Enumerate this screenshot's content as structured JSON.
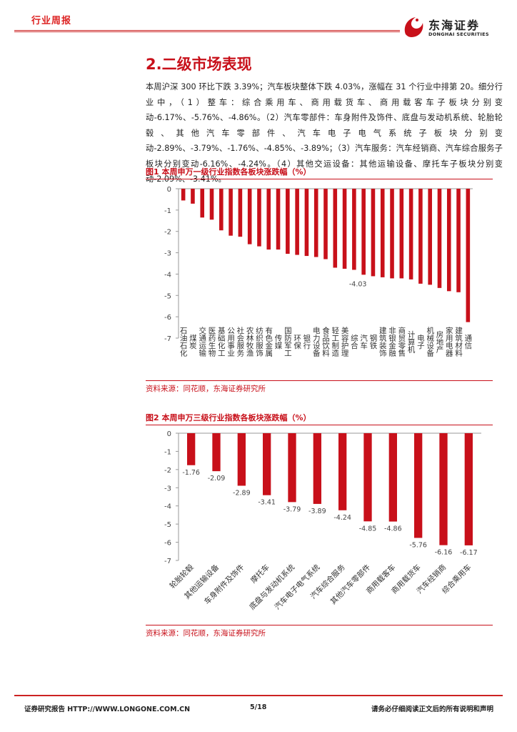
{
  "header": {
    "tag": "行业周报",
    "logo_cn": "东海证券",
    "logo_en": "DONGHAI SECURITIES",
    "accent_color": "#c8101a"
  },
  "section": {
    "title": "2.二级市场表现",
    "paragraph": "本周沪深 300 环比下跌 3.39%；汽车板块整体下跌 4.03%，涨幅在 31 个行业中排第 20。细分行业中，（1）整车：综合乘用车、商用载货车、商用载客车子板块分别变动-6.17%、-5.76%、-4.86%。（2）汽车零部件：车身附件及饰件、底盘与发动机系统、轮胎轮毂、其他汽车零部件、汽车电子电气系统子板块分别变动-2.89%、-3.79%、-1.76%、-4.85%、-3.89%；（3）汽车服务：汽车经销商、汽车综合服务子板块分别变动-6.16%、-4.24%。（4）其他交运设备：其他运输设备、摩托车子板块分别变动-2.09%、-3.41%。"
  },
  "figure1": {
    "title": "图1  本周申万一级行业指数各板块涨跌幅（%）",
    "source": "资料来源：同花顺，东海证券研究所"
  },
  "figure2": {
    "title": "图2  本周申万三级行业指数各板块涨跌幅（%）",
    "source": "资料来源：同花顺，东海证券研究所"
  },
  "footer": {
    "left": "证券研究报告    HTTP://WWW.LONGONE.COM.CN",
    "page": "5/18",
    "right": "请务必仔细阅读正文后的所有说明和声明"
  },
  "chart_data": [
    {
      "type": "bar",
      "title": "本周申万一级行业指数各板块涨跌幅（%）",
      "categories": [
        "石油石化",
        "煤炭",
        "交通运输",
        "医药生物",
        "基础化工",
        "公用事业",
        "社会服务",
        "农林牧渔",
        "纺织服饰",
        "有色金属",
        "传媒",
        "国防军工",
        "环保",
        "银行",
        "电力设备",
        "食品饮料",
        "轻工制造",
        "美容护理",
        "综合",
        "汽车",
        "钢铁",
        "建筑装饰",
        "非银金融",
        "商贸零售",
        "计算机",
        "电子",
        "机械设备",
        "房地产",
        "家用电器",
        "建筑材料",
        "通信"
      ],
      "values": [
        -0.55,
        -0.7,
        -1.35,
        -1.45,
        -1.95,
        -2.2,
        -2.25,
        -2.6,
        -2.7,
        -2.85,
        -2.85,
        -3.05,
        -3.1,
        -3.15,
        -3.2,
        -3.3,
        -3.7,
        -3.75,
        -3.8,
        -4.03,
        -4.1,
        -4.15,
        -4.2,
        -4.2,
        -4.25,
        -4.45,
        -4.5,
        -4.65,
        -4.8,
        -4.85,
        -6.25
      ],
      "highlight_label": "-4.03",
      "ylim": [
        -7,
        0
      ],
      "yticks": [
        0,
        -1,
        -2,
        -3,
        -4,
        -5,
        -6,
        -7
      ],
      "bar_color": "#c8101a"
    },
    {
      "type": "bar",
      "title": "本周申万三级行业指数各板块涨跌幅（%）",
      "categories": [
        "轮胎轮毂",
        "其他运输设备",
        "车身附件及饰件",
        "摩托车",
        "底盘与发动机系统",
        "汽车电子电气系统",
        "汽车综合服务",
        "其他汽车零部件",
        "商用载客车",
        "商用载货车",
        "汽车经销商",
        "综合乘用车"
      ],
      "values": [
        -1.76,
        -2.09,
        -2.89,
        -3.41,
        -3.79,
        -3.89,
        -4.24,
        -4.85,
        -4.86,
        -5.76,
        -6.16,
        -6.17
      ],
      "labels": [
        "-1.76",
        "-2.09",
        "-2.89",
        "-3.41",
        "-3.79",
        "-3.89",
        "-4.24",
        "-4.85",
        "-4.86",
        "-5.76",
        "-6.16",
        "-6.17"
      ],
      "ylim": [
        -7,
        0
      ],
      "yticks": [
        0,
        -1,
        -2,
        -3,
        -4,
        -5,
        -6,
        -7
      ],
      "bar_color": "#c8101a"
    }
  ]
}
